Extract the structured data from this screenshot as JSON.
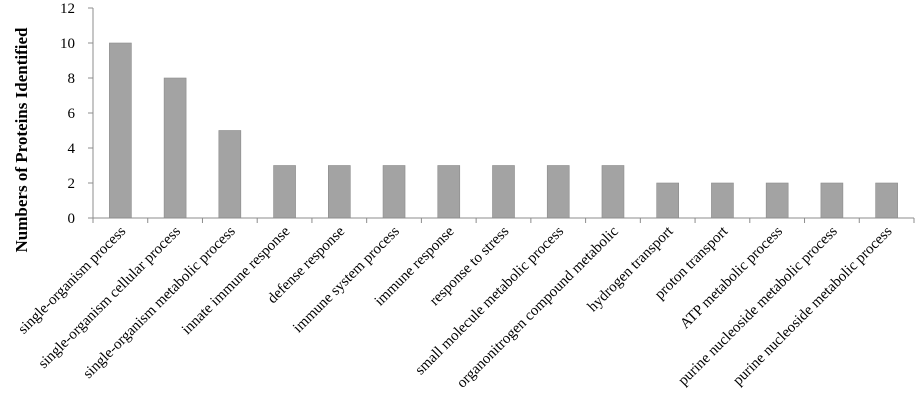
{
  "chart_data": {
    "type": "bar",
    "ylabel": "Numbers of Proteins Identified",
    "xlabel": "",
    "ylim": [
      0,
      12
    ],
    "yticks": [
      0,
      2,
      4,
      6,
      8,
      10,
      12
    ],
    "grid": false,
    "bar_color": "#a3a3a3",
    "axis_color": "#8c8c8c",
    "categories": [
      "single-organism process",
      "single-organism cellular process",
      "single-organism metabolic process",
      "innate immune response",
      "defense response",
      "immune system process",
      "immune response",
      "response to stress",
      "small molecule metabolic process",
      "organonitrogen compound metabolic",
      "hydrogen transport",
      "proton transport",
      "ATP metabolic process",
      "purine nucleoside metabolic process",
      "purine nucleoside metabolic process"
    ],
    "values": [
      10,
      8,
      5,
      3,
      3,
      3,
      3,
      3,
      3,
      3,
      2,
      2,
      2,
      2,
      2
    ]
  }
}
